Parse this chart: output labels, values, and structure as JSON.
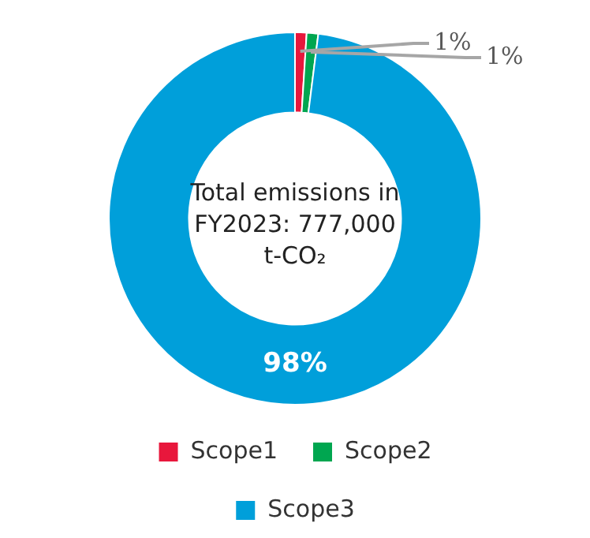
{
  "chart_data": {
    "type": "donut",
    "categories": [
      "Scope1",
      "Scope2",
      "Scope3"
    ],
    "values": [
      1,
      1,
      98
    ],
    "colors": [
      "#e8173c",
      "#00a650",
      "#009fda"
    ],
    "value_labels": [
      "1%",
      "1%",
      "98%"
    ],
    "annotations": [
      "Total emissions in FY2023: 777,000 t-CO₂"
    ],
    "legend": "bottom"
  }
}
